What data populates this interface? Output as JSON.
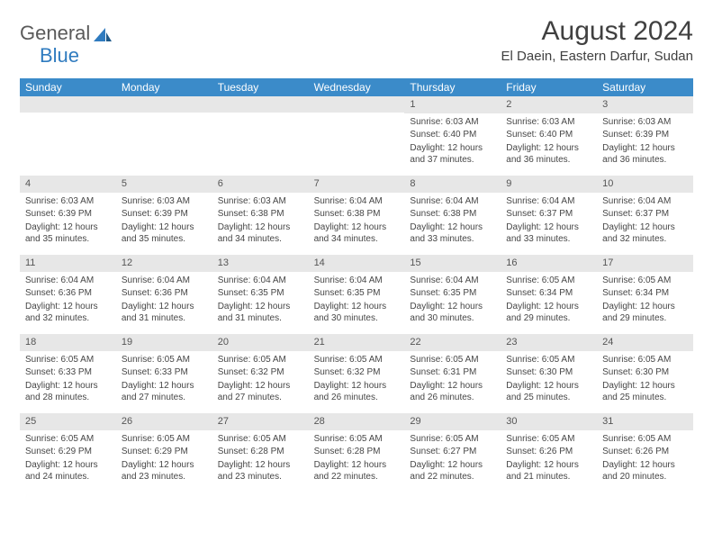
{
  "brand": {
    "name1": "General",
    "name2": "Blue"
  },
  "title": "August 2024",
  "subtitle": "El Daein, Eastern Darfur, Sudan",
  "colors": {
    "header_bg": "#3b8bc9",
    "header_text": "#ffffff",
    "daynum_bg": "#e7e7e7",
    "text": "#464646",
    "brand_gray": "#5a5a5a",
    "brand_blue": "#2f7bbf"
  },
  "dayLabels": [
    "Sunday",
    "Monday",
    "Tuesday",
    "Wednesday",
    "Thursday",
    "Friday",
    "Saturday"
  ],
  "weeks": [
    [
      {
        "n": "",
        "sr": "",
        "ss": "",
        "dl": ""
      },
      {
        "n": "",
        "sr": "",
        "ss": "",
        "dl": ""
      },
      {
        "n": "",
        "sr": "",
        "ss": "",
        "dl": ""
      },
      {
        "n": "",
        "sr": "",
        "ss": "",
        "dl": ""
      },
      {
        "n": "1",
        "sr": "Sunrise: 6:03 AM",
        "ss": "Sunset: 6:40 PM",
        "dl": "Daylight: 12 hours and 37 minutes."
      },
      {
        "n": "2",
        "sr": "Sunrise: 6:03 AM",
        "ss": "Sunset: 6:40 PM",
        "dl": "Daylight: 12 hours and 36 minutes."
      },
      {
        "n": "3",
        "sr": "Sunrise: 6:03 AM",
        "ss": "Sunset: 6:39 PM",
        "dl": "Daylight: 12 hours and 36 minutes."
      }
    ],
    [
      {
        "n": "4",
        "sr": "Sunrise: 6:03 AM",
        "ss": "Sunset: 6:39 PM",
        "dl": "Daylight: 12 hours and 35 minutes."
      },
      {
        "n": "5",
        "sr": "Sunrise: 6:03 AM",
        "ss": "Sunset: 6:39 PM",
        "dl": "Daylight: 12 hours and 35 minutes."
      },
      {
        "n": "6",
        "sr": "Sunrise: 6:03 AM",
        "ss": "Sunset: 6:38 PM",
        "dl": "Daylight: 12 hours and 34 minutes."
      },
      {
        "n": "7",
        "sr": "Sunrise: 6:04 AM",
        "ss": "Sunset: 6:38 PM",
        "dl": "Daylight: 12 hours and 34 minutes."
      },
      {
        "n": "8",
        "sr": "Sunrise: 6:04 AM",
        "ss": "Sunset: 6:38 PM",
        "dl": "Daylight: 12 hours and 33 minutes."
      },
      {
        "n": "9",
        "sr": "Sunrise: 6:04 AM",
        "ss": "Sunset: 6:37 PM",
        "dl": "Daylight: 12 hours and 33 minutes."
      },
      {
        "n": "10",
        "sr": "Sunrise: 6:04 AM",
        "ss": "Sunset: 6:37 PM",
        "dl": "Daylight: 12 hours and 32 minutes."
      }
    ],
    [
      {
        "n": "11",
        "sr": "Sunrise: 6:04 AM",
        "ss": "Sunset: 6:36 PM",
        "dl": "Daylight: 12 hours and 32 minutes."
      },
      {
        "n": "12",
        "sr": "Sunrise: 6:04 AM",
        "ss": "Sunset: 6:36 PM",
        "dl": "Daylight: 12 hours and 31 minutes."
      },
      {
        "n": "13",
        "sr": "Sunrise: 6:04 AM",
        "ss": "Sunset: 6:35 PM",
        "dl": "Daylight: 12 hours and 31 minutes."
      },
      {
        "n": "14",
        "sr": "Sunrise: 6:04 AM",
        "ss": "Sunset: 6:35 PM",
        "dl": "Daylight: 12 hours and 30 minutes."
      },
      {
        "n": "15",
        "sr": "Sunrise: 6:04 AM",
        "ss": "Sunset: 6:35 PM",
        "dl": "Daylight: 12 hours and 30 minutes."
      },
      {
        "n": "16",
        "sr": "Sunrise: 6:05 AM",
        "ss": "Sunset: 6:34 PM",
        "dl": "Daylight: 12 hours and 29 minutes."
      },
      {
        "n": "17",
        "sr": "Sunrise: 6:05 AM",
        "ss": "Sunset: 6:34 PM",
        "dl": "Daylight: 12 hours and 29 minutes."
      }
    ],
    [
      {
        "n": "18",
        "sr": "Sunrise: 6:05 AM",
        "ss": "Sunset: 6:33 PM",
        "dl": "Daylight: 12 hours and 28 minutes."
      },
      {
        "n": "19",
        "sr": "Sunrise: 6:05 AM",
        "ss": "Sunset: 6:33 PM",
        "dl": "Daylight: 12 hours and 27 minutes."
      },
      {
        "n": "20",
        "sr": "Sunrise: 6:05 AM",
        "ss": "Sunset: 6:32 PM",
        "dl": "Daylight: 12 hours and 27 minutes."
      },
      {
        "n": "21",
        "sr": "Sunrise: 6:05 AM",
        "ss": "Sunset: 6:32 PM",
        "dl": "Daylight: 12 hours and 26 minutes."
      },
      {
        "n": "22",
        "sr": "Sunrise: 6:05 AM",
        "ss": "Sunset: 6:31 PM",
        "dl": "Daylight: 12 hours and 26 minutes."
      },
      {
        "n": "23",
        "sr": "Sunrise: 6:05 AM",
        "ss": "Sunset: 6:30 PM",
        "dl": "Daylight: 12 hours and 25 minutes."
      },
      {
        "n": "24",
        "sr": "Sunrise: 6:05 AM",
        "ss": "Sunset: 6:30 PM",
        "dl": "Daylight: 12 hours and 25 minutes."
      }
    ],
    [
      {
        "n": "25",
        "sr": "Sunrise: 6:05 AM",
        "ss": "Sunset: 6:29 PM",
        "dl": "Daylight: 12 hours and 24 minutes."
      },
      {
        "n": "26",
        "sr": "Sunrise: 6:05 AM",
        "ss": "Sunset: 6:29 PM",
        "dl": "Daylight: 12 hours and 23 minutes."
      },
      {
        "n": "27",
        "sr": "Sunrise: 6:05 AM",
        "ss": "Sunset: 6:28 PM",
        "dl": "Daylight: 12 hours and 23 minutes."
      },
      {
        "n": "28",
        "sr": "Sunrise: 6:05 AM",
        "ss": "Sunset: 6:28 PM",
        "dl": "Daylight: 12 hours and 22 minutes."
      },
      {
        "n": "29",
        "sr": "Sunrise: 6:05 AM",
        "ss": "Sunset: 6:27 PM",
        "dl": "Daylight: 12 hours and 22 minutes."
      },
      {
        "n": "30",
        "sr": "Sunrise: 6:05 AM",
        "ss": "Sunset: 6:26 PM",
        "dl": "Daylight: 12 hours and 21 minutes."
      },
      {
        "n": "31",
        "sr": "Sunrise: 6:05 AM",
        "ss": "Sunset: 6:26 PM",
        "dl": "Daylight: 12 hours and 20 minutes."
      }
    ]
  ]
}
